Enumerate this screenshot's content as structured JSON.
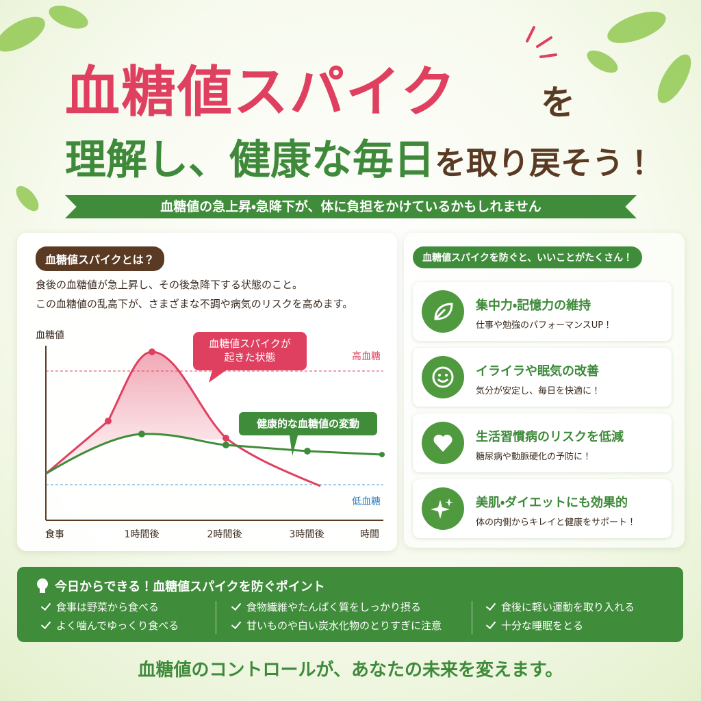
{
  "header": {
    "title": [
      "血糖値スパイク",
      "を",
      "理解し、",
      "健康な毎日",
      "を取り戻そう！"
    ],
    "banner": "血糖値の急上昇・急降下が、体に負担をかけているかもしれません"
  },
  "about": {
    "tag": "血糖値スパイクとは？",
    "lines": [
      "食後の血糖値が急上昇し、その後急降下する状態のこと。",
      "この血糖値の乱高下が、さまざまな不調や病気のリスクを高めます。"
    ],
    "diagram": {
      "y_label": "血糖値",
      "x_label": "時間",
      "x_ticks": [
        "食事",
        "1時間後",
        "2時間後",
        "3時間後"
      ],
      "high": "高血糖",
      "low": "低血糖",
      "spike_callout": [
        "血糖値スパイクが",
        "起きた状態"
      ],
      "healthy_callout": "健康的な血糖値の変動"
    }
  },
  "benefits": {
    "tag": "血糖値スパイクを防ぐと、いいことがたくさん！",
    "items": [
      {
        "title": "集中力・記憶力の維持",
        "text": "仕事や勉強のパフォーマンスUP！"
      },
      {
        "title": "イライラや眠気の改善",
        "text": "気分が安定し、毎日を快適に！"
      },
      {
        "title": "生活習慣病のリスクを低減",
        "text": "糖尿病や動脈硬化の予防に！"
      },
      {
        "title": "美肌・ダイエットにも効果的",
        "text": "体の内側からキレイと健康をサポート！"
      }
    ]
  },
  "tips": {
    "title": "今日からできる！血糖値スパイクを防ぐポイント",
    "columns": [
      [
        "食事は野菜から食べる",
        "よく噛んでゆっくり食べる"
      ],
      [
        "食物繊維やたんぱく質をしっかり摂る",
        "甘いものや白い炭水化物のとりすぎに注意"
      ],
      [
        "食後に軽い運動を取り入れる",
        "十分な睡眠をとる"
      ]
    ]
  },
  "footer": "血糖値のコントロールが、あなたの未来を変えます。"
}
